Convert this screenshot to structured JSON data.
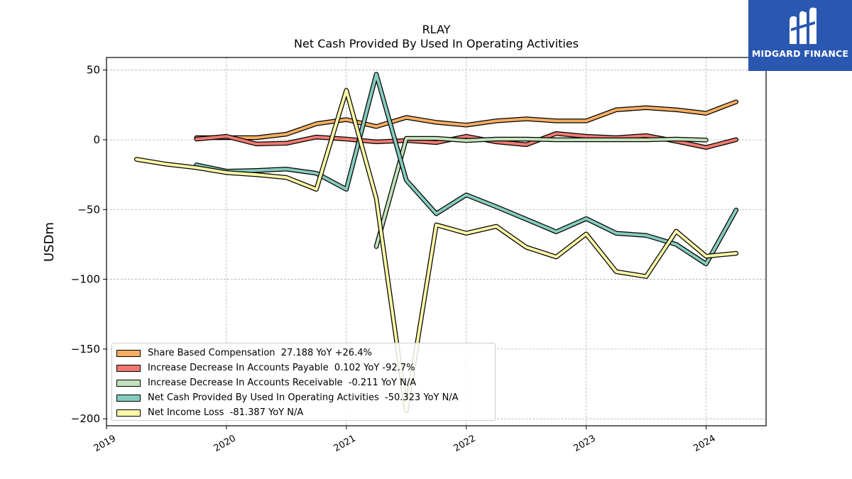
{
  "chart_data": {
    "type": "line",
    "title": "RLAY",
    "subtitle": "Net Cash Provided By Used In Operating Activities",
    "ylabel": "USDm",
    "xlabel": "",
    "ylim": [
      -205,
      59
    ],
    "xlim": [
      2019.0,
      2024.5
    ],
    "yticks": [
      50,
      0,
      -50,
      -100,
      -150,
      -200
    ],
    "ytick_labels": [
      "50",
      "0",
      "−50",
      "−100",
      "−150",
      "−200"
    ],
    "xticks": [
      2019,
      2020,
      2021,
      2022,
      2023,
      2024
    ],
    "xtick_labels": [
      "2019",
      "2020",
      "2021",
      "2022",
      "2023",
      "2024"
    ],
    "grid": true,
    "legend_position": "lower-left",
    "series": [
      {
        "name": "Share Based Compensation",
        "legend_label": "Share Based Compensation  27.188 YoY +26.4%",
        "color": "#f6ad62",
        "x": [
          2019.75,
          2020.0,
          2020.25,
          2020.5,
          2020.75,
          2021.0,
          2021.25,
          2021.5,
          2021.75,
          2022.0,
          2022.25,
          2022.5,
          2022.75,
          2023.0,
          2023.25,
          2023.5,
          2023.75,
          2024.0,
          2024.25
        ],
        "values": [
          1.5,
          1.5,
          1.5,
          4.0,
          11.5,
          14.5,
          9.5,
          16.0,
          12.5,
          10.5,
          13.5,
          15.0,
          13.5,
          13.5,
          21.5,
          23.0,
          21.5,
          19.0,
          27.2
        ]
      },
      {
        "name": "Increase Decrease In Accounts Payable",
        "legend_label": "Increase Decrease In Accounts Payable  0.102 YoY -92.7%",
        "color": "#f07a72",
        "x": [
          2019.75,
          2020.0,
          2020.25,
          2020.5,
          2020.75,
          2021.0,
          2021.25,
          2021.5,
          2021.75,
          2022.0,
          2022.25,
          2022.5,
          2022.75,
          2023.0,
          2023.25,
          2023.5,
          2023.75,
          2024.0,
          2024.25
        ],
        "values": [
          0.5,
          2.5,
          -3.0,
          -2.5,
          2.0,
          0.5,
          -1.5,
          -0.5,
          -2.0,
          2.5,
          -1.5,
          -3.5,
          4.5,
          2.5,
          1.5,
          3.0,
          -1.0,
          -5.5,
          0.1
        ]
      },
      {
        "name": "Increase Decrease In Accounts Receivable",
        "legend_label": "Increase Decrease In Accounts Receivable  -0.211 YoY N/A",
        "color": "#c2e2bb",
        "x": [
          2021.25,
          2021.5,
          2021.75,
          2022.0,
          2022.25,
          2022.5,
          2022.75,
          2023.0,
          2023.25,
          2023.5,
          2023.75,
          2024.0
        ],
        "values": [
          -76.5,
          1.0,
          1.0,
          -0.5,
          0.5,
          0.5,
          0.0,
          0.0,
          0.0,
          0.0,
          0.5,
          -0.2
        ]
      },
      {
        "name": "Net Cash Provided By Used In Operating Activities",
        "legend_label": "Net Cash Provided By Used In Operating Activities  -50.323 YoY N/A",
        "color": "#86ccbe",
        "x": [
          2019.75,
          2020.0,
          2020.25,
          2020.5,
          2020.75,
          2021.0,
          2021.25,
          2021.5,
          2021.75,
          2022.0,
          2022.25,
          2022.5,
          2022.75,
          2023.0,
          2023.25,
          2023.5,
          2023.75,
          2024.0,
          2024.25
        ],
        "values": [
          -18.0,
          -22.5,
          -22.0,
          -21.0,
          -24.0,
          -35.5,
          47.0,
          -29.0,
          -53.0,
          -39.5,
          -48.0,
          -57.0,
          -66.0,
          -56.5,
          -67.0,
          -68.5,
          -75.0,
          -89.0,
          -50.3
        ]
      },
      {
        "name": "Net Income Loss",
        "legend_label": "Net Income Loss  -81.387 YoY N/A",
        "color": "#fdf8a8",
        "x": [
          2019.25,
          2019.5,
          2019.75,
          2020.0,
          2020.25,
          2020.5,
          2020.75,
          2021.0,
          2021.25,
          2021.5,
          2021.75,
          2022.0,
          2022.25,
          2022.5,
          2022.75,
          2023.0,
          2023.25,
          2023.5,
          2023.75,
          2024.0,
          2024.25
        ],
        "values": [
          -14.0,
          -17.5,
          -20.0,
          -23.5,
          -25.0,
          -27.0,
          -35.5,
          35.5,
          -42.0,
          -194.0,
          -61.0,
          -67.0,
          -62.0,
          -77.0,
          -84.0,
          -67.5,
          -94.5,
          -98.0,
          -65.5,
          -83.5,
          -81.4
        ]
      }
    ]
  },
  "logo": {
    "text": "MIDGARD FINANCE",
    "bg_color": "#2a57b0",
    "icon": "midgard-logo-icon"
  }
}
